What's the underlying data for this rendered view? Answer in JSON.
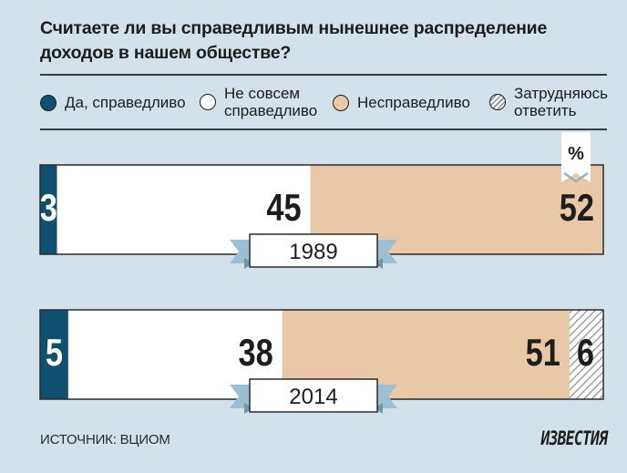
{
  "title": "Считаете ли вы справедливым нынешнее распределение доходов в нашем обществе?",
  "legend": [
    {
      "key": "yes",
      "label": "Да, справедливо",
      "color": "#0f5070"
    },
    {
      "key": "notquite",
      "label": "Не совсем\nсправедливо",
      "color": "#ffffff"
    },
    {
      "key": "unfair",
      "label": "Несправедливо",
      "color": "#e8c8a6"
    },
    {
      "key": "hard",
      "label": "Затрудняюсь\nответить",
      "color": "hatch"
    }
  ],
  "unit_badge": "%",
  "chart_data": {
    "type": "bar",
    "stacked": true,
    "orientation": "horizontal",
    "categories": [
      "1989",
      "2014"
    ],
    "series": [
      {
        "name": "Да, справедливо",
        "values": [
          3,
          5
        ],
        "color": "#0f5070"
      },
      {
        "name": "Не совсем справедливо",
        "values": [
          45,
          38
        ],
        "color": "#ffffff"
      },
      {
        "name": "Несправедливо",
        "values": [
          52,
          51
        ],
        "color": "#e8c8a6"
      },
      {
        "name": "Затрудняюсь ответить",
        "values": [
          0,
          6
        ],
        "color": "hatch"
      }
    ],
    "data_labels": [
      [
        "3",
        "45",
        "52",
        ""
      ],
      [
        "5",
        "38",
        "51",
        "6"
      ]
    ]
  },
  "footer": {
    "source": "ИСТОЧНИК: ВЦИОМ",
    "logo": "ИЗВЕСТИЯ"
  }
}
